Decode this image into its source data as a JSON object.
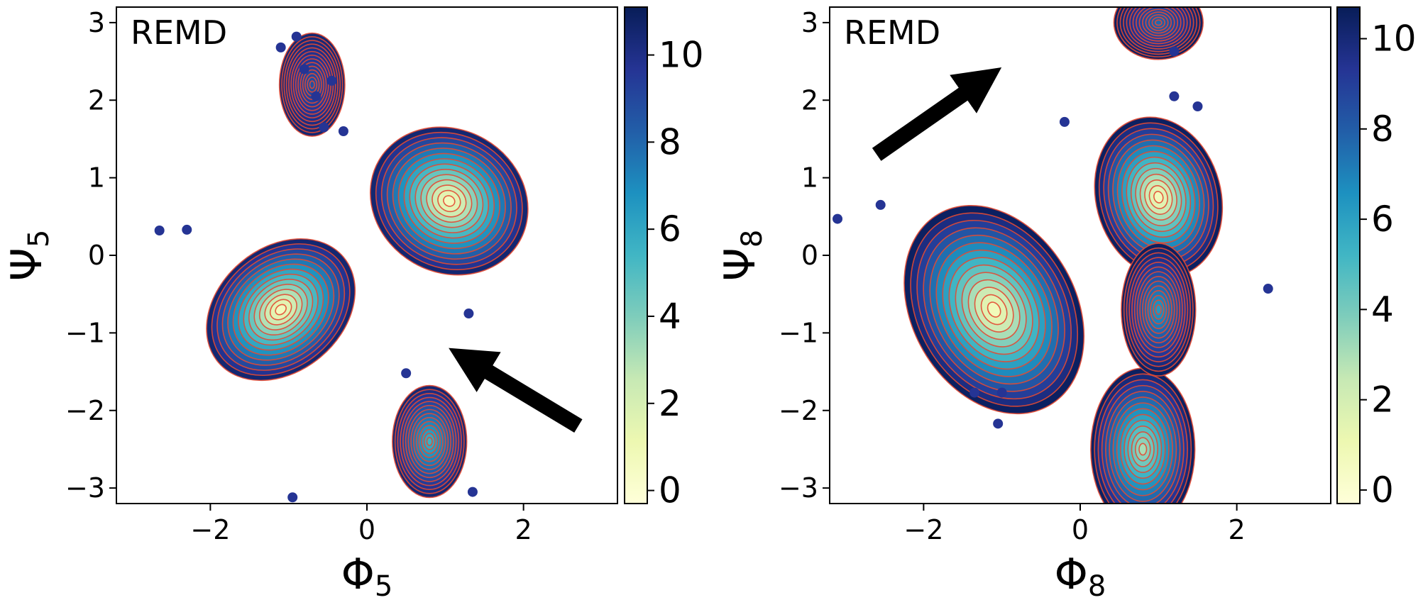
{
  "chart_data": [
    {
      "type": "heatmap",
      "panel_label": "REMD",
      "xlabel": "Φ",
      "xlabel_sub": "5",
      "ylabel": "Ψ",
      "ylabel_sub": "5",
      "xlim": [
        -3.2,
        3.2
      ],
      "ylim": [
        -3.2,
        3.2
      ],
      "xticks": [
        {
          "v": -2,
          "label": "−2"
        },
        {
          "v": 0,
          "label": "0"
        },
        {
          "v": 2,
          "label": "2"
        }
      ],
      "yticks": [
        {
          "v": -3,
          "label": "−3"
        },
        {
          "v": -2,
          "label": "−2"
        },
        {
          "v": -1,
          "label": "−1"
        },
        {
          "v": 0,
          "label": "0"
        },
        {
          "v": 1,
          "label": "1"
        },
        {
          "v": 2,
          "label": "2"
        },
        {
          "v": 3,
          "label": "3"
        }
      ],
      "colorbar": {
        "range": [
          -0.3,
          11.1
        ],
        "ticks": [
          {
            "v": 0,
            "label": "0"
          },
          {
            "v": 2,
            "label": "2"
          },
          {
            "v": 4,
            "label": "4"
          },
          {
            "v": 6,
            "label": "6"
          },
          {
            "v": 8,
            "label": "8"
          },
          {
            "v": 10,
            "label": "10"
          }
        ]
      },
      "basins": [
        {
          "cx": -1.1,
          "cy": -0.7,
          "sx": 0.55,
          "sy": 0.42,
          "rot": -40,
          "depth": 0
        },
        {
          "cx": 1.05,
          "cy": 0.7,
          "sx": 0.48,
          "sy": 0.55,
          "rot": -60,
          "depth": 0
        },
        {
          "cx": 0.8,
          "cy": -2.4,
          "sx": 0.25,
          "sy": 0.38,
          "rot": 0,
          "depth": 5.2
        },
        {
          "cx": -0.7,
          "cy": 2.2,
          "sx": 0.22,
          "sy": 0.35,
          "rot": 0,
          "depth": 8.6
        }
      ],
      "arrow": {
        "from": [
          2.7,
          -2.2
        ],
        "to": [
          1.3,
          -1.35
        ]
      },
      "scatter": [
        [
          -2.65,
          0.32
        ],
        [
          -2.3,
          0.33
        ],
        [
          -0.95,
          -3.12
        ],
        [
          0.5,
          -1.52
        ],
        [
          -0.55,
          1.65
        ],
        [
          -0.3,
          1.6
        ],
        [
          -0.9,
          2.82
        ],
        [
          -1.1,
          2.68
        ],
        [
          -0.8,
          2.4
        ],
        [
          -0.65,
          2.05
        ],
        [
          -0.45,
          2.25
        ],
        [
          1.3,
          -0.75
        ],
        [
          1.35,
          -3.05
        ]
      ]
    },
    {
      "type": "heatmap",
      "panel_label": "REMD",
      "xlabel": "Φ",
      "xlabel_sub": "8",
      "ylabel": "Ψ",
      "ylabel_sub": "8",
      "xlim": [
        -3.2,
        3.2
      ],
      "ylim": [
        -3.2,
        3.2
      ],
      "xticks": [
        {
          "v": -2,
          "label": "−2"
        },
        {
          "v": 0,
          "label": "0"
        },
        {
          "v": 2,
          "label": "2"
        }
      ],
      "yticks": [
        {
          "v": -3,
          "label": "−3"
        },
        {
          "v": -2,
          "label": "−2"
        },
        {
          "v": -1,
          "label": "−1"
        },
        {
          "v": 0,
          "label": "0"
        },
        {
          "v": 1,
          "label": "1"
        },
        {
          "v": 2,
          "label": "2"
        },
        {
          "v": 3,
          "label": "3"
        }
      ],
      "colorbar": {
        "range": [
          -0.3,
          10.7
        ],
        "ticks": [
          {
            "v": 0,
            "label": "0"
          },
          {
            "v": 2,
            "label": "2"
          },
          {
            "v": 4,
            "label": "4"
          },
          {
            "v": 6,
            "label": "6"
          },
          {
            "v": 8,
            "label": "8"
          },
          {
            "v": 10,
            "label": "10"
          }
        ]
      },
      "basins": [
        {
          "cx": -1.1,
          "cy": -0.7,
          "sx": 0.55,
          "sy": 0.75,
          "rot": -30,
          "depth": 0
        },
        {
          "cx": 1.0,
          "cy": 0.75,
          "sx": 0.42,
          "sy": 0.55,
          "rot": -15,
          "depth": 0
        },
        {
          "cx": 0.8,
          "cy": -2.5,
          "sx": 0.35,
          "sy": 0.55,
          "rot": 0,
          "depth": 2.4
        },
        {
          "cx": 1.0,
          "cy": -0.7,
          "sx": 0.25,
          "sy": 0.45,
          "rot": 0,
          "depth": 6.0
        },
        {
          "cx": 1.0,
          "cy": 3.0,
          "sx": 0.3,
          "sy": 0.25,
          "rot": 0,
          "depth": 7.5
        }
      ],
      "arrow": {
        "from": [
          -2.6,
          1.3
        ],
        "to": [
          -1.25,
          2.25
        ]
      },
      "scatter": [
        [
          -3.1,
          0.47
        ],
        [
          -2.55,
          0.65
        ],
        [
          -0.2,
          1.72
        ],
        [
          1.2,
          2.05
        ],
        [
          1.5,
          1.92
        ],
        [
          2.4,
          -0.43
        ],
        [
          -1.05,
          -2.17
        ],
        [
          -1.35,
          -1.77
        ],
        [
          -1.0,
          -1.77
        ],
        [
          1.2,
          2.63
        ]
      ]
    }
  ]
}
